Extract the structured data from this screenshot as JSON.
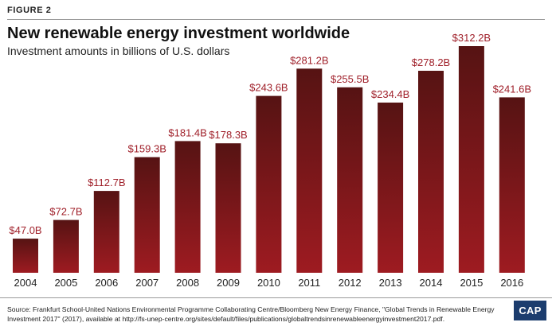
{
  "figure_label": "FIGURE 2",
  "title": "New renewable energy investment worldwide",
  "subtitle": "Investment amounts in billions of U.S. dollars",
  "source": "Source: Frankfurt School-United Nations Environmental Programme Collaborating Centre/Bloomberg New Energy Finance, \"Global Trends in Renewable Energy Investment 2017\" (2017), available at http://fs-unep-centre.org/sites/default/files/publications/globaltrendsinrenewableenergyinvestment2017.pdf.",
  "logo_text": "CAP",
  "colors": {
    "bar_top": "#561313",
    "bar_bottom": "#9e1b21",
    "label": "#a0202a"
  },
  "chart_data": {
    "type": "bar",
    "title": "New renewable energy investment worldwide",
    "subtitle": "Investment amounts in billions of U.S. dollars",
    "categories": [
      "2004",
      "2005",
      "2006",
      "2007",
      "2008",
      "2009",
      "2010",
      "2011",
      "2012",
      "2013",
      "2014",
      "2015",
      "2016"
    ],
    "values": [
      47.0,
      72.7,
      112.7,
      159.3,
      181.4,
      178.3,
      243.6,
      281.2,
      255.5,
      234.4,
      278.2,
      312.2,
      241.6
    ],
    "data_labels": [
      "$47.0B",
      "$72.7B",
      "$112.7B",
      "$159.3B",
      "$181.4B",
      "$178.3B",
      "$243.6B",
      "$281.2B",
      "$255.5B",
      "$234.4B",
      "$278.2B",
      "$312.2B",
      "$241.6B"
    ],
    "ylim": [
      0,
      312.2
    ],
    "grid": false,
    "legend": "none"
  }
}
